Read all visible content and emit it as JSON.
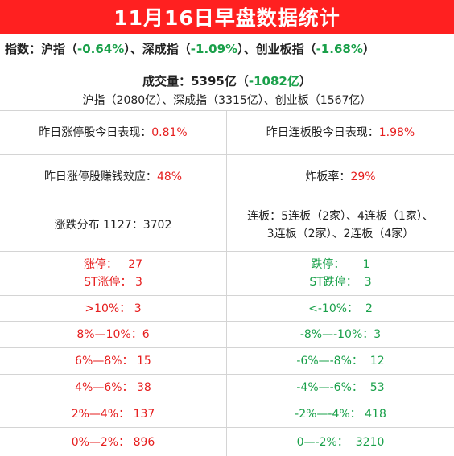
{
  "title": "11月16日早盘数据统计",
  "index_line": {
    "prefix": "指数：沪指（",
    "sh_change": "-0.64%",
    "sep1": "）、深成指（",
    "sz_change": "-1.09%",
    "sep2": "）、创业板指（",
    "cyb_change": "-1.68%",
    "suffix": "）"
  },
  "volume": {
    "prefix": "成交量：5395亿（",
    "change": "-1082亿",
    "suffix": "）",
    "breakdown": "沪指（2080亿）、深成指（3315亿）、创业板（1567亿）"
  },
  "yesterday_limit_up": {
    "label": "昨日涨停股今日表现：",
    "value": "0.81%"
  },
  "yesterday_consecutive": {
    "label": "昨日连板股今日表现：",
    "value": "1.98%"
  },
  "profit_effect": {
    "label": "昨日涨停股赚钱效应：",
    "value": "48%"
  },
  "break_rate": {
    "label": "炸板率：",
    "value": "29%"
  },
  "distribution": {
    "label": "涨跌分布 1127：3702"
  },
  "consecutive_boards": {
    "line1": "连板：5连板（2家）、4连板（1家）、",
    "line2": "3连板（2家）、2连板（4家）"
  },
  "limit_stats": {
    "up": {
      "label": "涨停：",
      "value": "27"
    },
    "st_up": {
      "label": "ST涨停：",
      "value": "3"
    },
    "down": {
      "label": "跌停：",
      "value": "1"
    },
    "st_down": {
      "label": "ST跌停：",
      "value": "3"
    }
  },
  "ranges": [
    {
      "up_label": ">10%：",
      "up_value": "3",
      "down_label": "<-10%：",
      "down_value": "2"
    },
    {
      "up_label": "8%—10%：",
      "up_value": "6",
      "down_label": "-8%—-10%：",
      "down_value": "3"
    },
    {
      "up_label": "6%—8%：",
      "up_value": "15",
      "down_label": "-6%—-8%：",
      "down_value": "12"
    },
    {
      "up_label": "4%—6%：",
      "up_value": "38",
      "down_label": "-4%—-6%：",
      "down_value": "53"
    },
    {
      "up_label": "2%—4%：",
      "up_value": "137",
      "down_label": "-2%—-4%：",
      "down_value": "418"
    },
    {
      "up_label": "0%—2%：",
      "up_value": "896",
      "down_label": "0—-2%：",
      "down_value": "3210"
    }
  ],
  "colors": {
    "header_bg": "#ff2020",
    "up": "#e61e1e",
    "down": "#1aa04a",
    "grid": "#d4d4d4"
  }
}
